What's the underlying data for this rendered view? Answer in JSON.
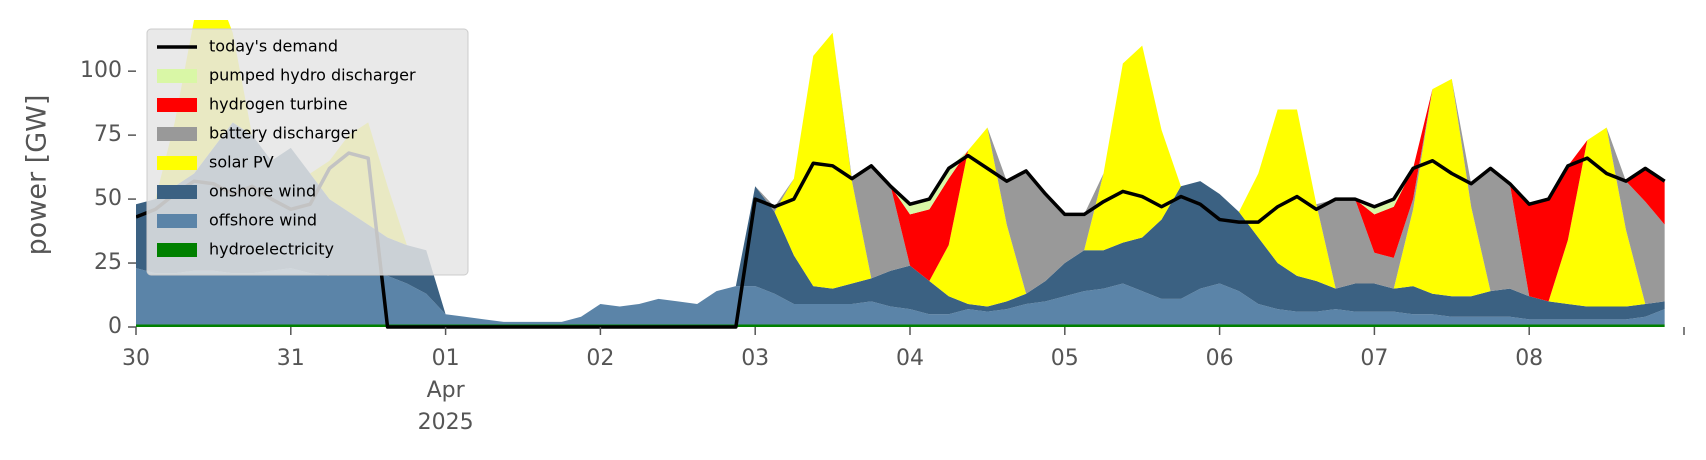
{
  "chart_data": {
    "type": "area",
    "ylabel": "power [GW]",
    "ylim": [
      0,
      120
    ],
    "yticks": [
      0,
      25,
      50,
      75,
      100
    ],
    "xlim": [
      "2025-03-30T00:00",
      "2025-04-09T00:00"
    ],
    "xticks": [
      {
        "value": "2025-03-30T00:00",
        "label": "30"
      },
      {
        "value": "2025-03-31T00:00",
        "label": "31"
      },
      {
        "value": "2025-04-01T00:00",
        "label": "01\nApr\n2025"
      },
      {
        "value": "2025-04-02T00:00",
        "label": "02"
      },
      {
        "value": "2025-04-03T00:00",
        "label": "03"
      },
      {
        "value": "2025-04-04T00:00",
        "label": "04"
      },
      {
        "value": "2025-04-05T00:00",
        "label": "05"
      },
      {
        "value": "2025-04-06T00:00",
        "label": "06"
      },
      {
        "value": "2025-04-07T00:00",
        "label": "07"
      },
      {
        "value": "2025-04-08T00:00",
        "label": "08"
      }
    ],
    "legend": "upper left",
    "x": [
      "2025-03-30T00:00",
      "2025-03-30T03:00",
      "2025-03-30T06:00",
      "2025-03-30T09:00",
      "2025-03-30T12:00",
      "2025-03-30T15:00",
      "2025-03-30T18:00",
      "2025-03-30T21:00",
      "2025-03-31T00:00",
      "2025-03-31T03:00",
      "2025-03-31T06:00",
      "2025-03-31T09:00",
      "2025-03-31T12:00",
      "2025-03-31T15:00",
      "2025-03-31T18:00",
      "2025-03-31T21:00",
      "2025-04-01T00:00",
      "2025-04-01T03:00",
      "2025-04-01T06:00",
      "2025-04-01T09:00",
      "2025-04-01T12:00",
      "2025-04-01T15:00",
      "2025-04-01T18:00",
      "2025-04-01T21:00",
      "2025-04-02T00:00",
      "2025-04-02T03:00",
      "2025-04-02T06:00",
      "2025-04-02T09:00",
      "2025-04-02T12:00",
      "2025-04-02T15:00",
      "2025-04-02T18:00",
      "2025-04-02T21:00",
      "2025-04-03T00:00",
      "2025-04-03T03:00",
      "2025-04-03T06:00",
      "2025-04-03T09:00",
      "2025-04-03T12:00",
      "2025-04-03T15:00",
      "2025-04-03T18:00",
      "2025-04-03T21:00",
      "2025-04-04T00:00",
      "2025-04-04T03:00",
      "2025-04-04T06:00",
      "2025-04-04T09:00",
      "2025-04-04T12:00",
      "2025-04-04T15:00",
      "2025-04-04T18:00",
      "2025-04-04T21:00",
      "2025-04-05T00:00",
      "2025-04-05T03:00",
      "2025-04-05T06:00",
      "2025-04-05T09:00",
      "2025-04-05T12:00",
      "2025-04-05T15:00",
      "2025-04-05T18:00",
      "2025-04-05T21:00",
      "2025-04-06T00:00",
      "2025-04-06T03:00",
      "2025-04-06T06:00",
      "2025-04-06T09:00",
      "2025-04-06T12:00",
      "2025-04-06T15:00",
      "2025-04-06T18:00",
      "2025-04-06T21:00",
      "2025-04-07T00:00",
      "2025-04-07T03:00",
      "2025-04-07T06:00",
      "2025-04-07T09:00",
      "2025-04-07T12:00",
      "2025-04-07T15:00",
      "2025-04-07T18:00",
      "2025-04-07T21:00",
      "2025-04-08T00:00",
      "2025-04-08T03:00",
      "2025-04-08T06:00",
      "2025-04-08T09:00",
      "2025-04-08T12:00",
      "2025-04-08T15:00",
      "2025-04-08T18:00",
      "2025-04-08T21:00"
    ],
    "series": [
      {
        "name": "today's demand",
        "type": "line",
        "color": "#000000",
        "values": [
          43,
          46,
          52,
          57,
          56,
          52,
          55,
          50,
          46,
          48,
          62,
          68,
          66,
          0,
          0,
          0,
          0,
          0,
          0,
          0,
          0,
          0,
          0,
          0,
          0,
          0,
          0,
          0,
          0,
          0,
          0,
          0,
          50,
          47,
          50,
          64,
          63,
          58,
          63,
          55,
          48,
          50,
          62,
          67,
          62,
          57,
          61,
          52,
          44,
          44,
          49,
          53,
          51,
          47,
          51,
          48,
          42,
          41,
          41,
          47,
          51,
          46,
          50,
          50,
          47,
          50,
          62,
          65,
          60,
          56,
          62,
          56,
          48,
          50,
          63,
          66,
          60,
          57,
          62,
          57
        ]
      },
      {
        "name": "pumped hydro discharger",
        "color": "#d9f7a6",
        "values": [
          0,
          0,
          0,
          0,
          0,
          0,
          0,
          0,
          0,
          0,
          0,
          0,
          0,
          0,
          0,
          0,
          0,
          0,
          0,
          0,
          0,
          0,
          0,
          0,
          0,
          0,
          0,
          0,
          0,
          0,
          0,
          0,
          0,
          0,
          0,
          0,
          0,
          0,
          0,
          0,
          4,
          4,
          4,
          0,
          0,
          0,
          0,
          0,
          0,
          0,
          0,
          0,
          0,
          0,
          0,
          0,
          0,
          0,
          0,
          0,
          0,
          0,
          0,
          0,
          3,
          3,
          0,
          0,
          0,
          0,
          0,
          0,
          0,
          0,
          0,
          0,
          0,
          0,
          0,
          0
        ]
      },
      {
        "name": "hydrogen turbine",
        "color": "#ff0000",
        "values": [
          0,
          0,
          0,
          0,
          0,
          0,
          0,
          0,
          0,
          0,
          0,
          0,
          0,
          0,
          0,
          0,
          0,
          0,
          0,
          0,
          0,
          0,
          0,
          0,
          0,
          0,
          0,
          0,
          0,
          0,
          0,
          0,
          0,
          0,
          0,
          0,
          0,
          0,
          0,
          0,
          20,
          28,
          26,
          0,
          0,
          0,
          0,
          0,
          0,
          0,
          0,
          0,
          0,
          0,
          0,
          0,
          0,
          0,
          0,
          0,
          0,
          0,
          0,
          0,
          15,
          20,
          12,
          0,
          0,
          0,
          0,
          0,
          36,
          40,
          29,
          0,
          0,
          0,
          13,
          17
        ]
      },
      {
        "name": "battery discharger",
        "color": "#999999",
        "values": [
          0,
          0,
          0,
          0,
          0,
          0,
          0,
          0,
          0,
          0,
          0,
          0,
          0,
          0,
          0,
          0,
          0,
          0,
          0,
          0,
          0,
          0,
          0,
          0,
          0,
          0,
          0,
          0,
          0,
          0,
          0,
          0,
          0,
          2,
          0,
          0,
          0,
          1,
          44,
          33,
          0,
          0,
          0,
          0,
          0,
          17,
          48,
          34,
          19,
          14,
          0,
          0,
          0,
          0,
          0,
          0,
          0,
          0,
          0,
          0,
          0,
          0,
          35,
          33,
          12,
          12,
          4,
          0,
          0,
          9,
          48,
          41,
          0,
          0,
          0,
          0,
          0,
          19,
          40,
          30
        ]
      },
      {
        "name": "solar PV",
        "color": "#ffff00",
        "values": [
          0,
          0,
          25,
          60,
          65,
          35,
          0,
          0,
          0,
          0,
          15,
          30,
          40,
          20,
          0,
          0,
          0,
          0,
          0,
          0,
          0,
          0,
          0,
          0,
          0,
          0,
          0,
          0,
          0,
          0,
          0,
          0,
          0,
          0,
          30,
          90,
          100,
          40,
          0,
          0,
          0,
          0,
          20,
          60,
          70,
          30,
          0,
          0,
          0,
          0,
          30,
          70,
          75,
          35,
          0,
          0,
          0,
          0,
          25,
          60,
          65,
          30,
          0,
          0,
          0,
          0,
          30,
          80,
          85,
          35,
          0,
          0,
          0,
          0,
          25,
          65,
          70,
          30,
          0,
          0
        ]
      },
      {
        "name": "onshore wind",
        "color": "#3b6182",
        "values": [
          25,
          29,
          34,
          38,
          48,
          59,
          54,
          43,
          47,
          39,
          30,
          25,
          20,
          15,
          15,
          17,
          0,
          0,
          0,
          0,
          0,
          0,
          0,
          0,
          0,
          0,
          0,
          0,
          0,
          0,
          0,
          0,
          39,
          32,
          19,
          7,
          6,
          8,
          9,
          14,
          17,
          13,
          7,
          2,
          2,
          3,
          4,
          8,
          13,
          16,
          15,
          16,
          21,
          31,
          44,
          42,
          35,
          31,
          26,
          18,
          14,
          12,
          8,
          11,
          11,
          9,
          11,
          8,
          8,
          8,
          10,
          11,
          9,
          7,
          6,
          5,
          5,
          5,
          5,
          3
        ]
      },
      {
        "name": "offshore wind",
        "color": "#5b84a8",
        "values": [
          22,
          20,
          20,
          21,
          21,
          20,
          20,
          21,
          22,
          20,
          19,
          19,
          19,
          19,
          16,
          12,
          4,
          3,
          2,
          1,
          1,
          1,
          1,
          3,
          8,
          7,
          8,
          10,
          9,
          8,
          13,
          15,
          15,
          12,
          8,
          8,
          8,
          8,
          9,
          7,
          6,
          4,
          4,
          6,
          5,
          6,
          8,
          9,
          11,
          13,
          14,
          16,
          13,
          10,
          10,
          14,
          16,
          13,
          8,
          6,
          5,
          5,
          6,
          5,
          5,
          5,
          4,
          4,
          3,
          3,
          3,
          3,
          2,
          2,
          2,
          2,
          2,
          2,
          3,
          6
        ]
      },
      {
        "name": "hydroelectricity",
        "color": "#008000",
        "values": [
          1,
          1,
          1,
          1,
          1,
          1,
          1,
          1,
          1,
          1,
          1,
          1,
          1,
          1,
          1,
          1,
          1,
          1,
          1,
          1,
          1,
          1,
          1,
          1,
          1,
          1,
          1,
          1,
          1,
          1,
          1,
          1,
          1,
          1,
          1,
          1,
          1,
          1,
          1,
          1,
          1,
          1,
          1,
          1,
          1,
          1,
          1,
          1,
          1,
          1,
          1,
          1,
          1,
          1,
          1,
          1,
          1,
          1,
          1,
          1,
          1,
          1,
          1,
          1,
          1,
          1,
          1,
          1,
          1,
          1,
          1,
          1,
          1,
          1,
          1,
          1,
          1,
          1,
          1,
          1
        ]
      }
    ]
  }
}
